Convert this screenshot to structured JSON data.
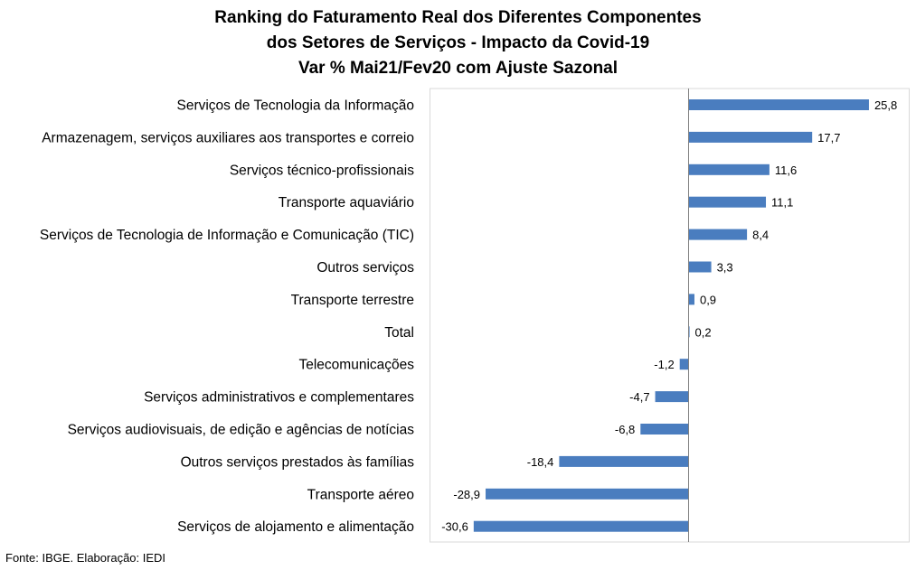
{
  "chart_data": {
    "type": "bar",
    "orientation": "horizontal",
    "title_lines": [
      "Ranking do Faturamento Real dos Diferentes Componentes",
      "dos Setores de Serviços - Impacto da Covid-19",
      "Var % Mai21/Fev20 com Ajuste Sazonal"
    ],
    "categories": [
      "Serviços de Tecnologia da Informação",
      "Armazenagem, serviços auxiliares aos transportes e correio",
      "Serviços técnico-profissionais",
      "Transporte aquaviário",
      "Serviços de Tecnologia de Informação e Comunicação (TIC)",
      "Outros serviços",
      "Transporte terrestre",
      "Total",
      "Telecomunicações",
      "Serviços administrativos e complementares",
      "Serviços audiovisuais, de edição e agências de notícias",
      "Outros serviços prestados às famílias",
      "Transporte aéreo",
      "Serviços de alojamento e alimentação"
    ],
    "values": [
      25.8,
      17.7,
      11.6,
      11.1,
      8.4,
      3.3,
      0.9,
      0.2,
      -1.2,
      -4.7,
      -6.8,
      -18.4,
      -28.9,
      -30.6
    ],
    "value_labels": [
      "25,8",
      "17,7",
      "11,6",
      "11,1",
      "8,4",
      "3,3",
      "0,9",
      "0,2",
      "-1,2",
      "-4,7",
      "-6,8",
      "-18,4",
      "-28,9",
      "-30,6"
    ],
    "xlim": [
      -40,
      30
    ],
    "bar_color": "#4a7dbf",
    "grid": false,
    "legend": "none"
  },
  "footer": {
    "source": "Fonte: IBGE. Elaboração: IEDI"
  }
}
